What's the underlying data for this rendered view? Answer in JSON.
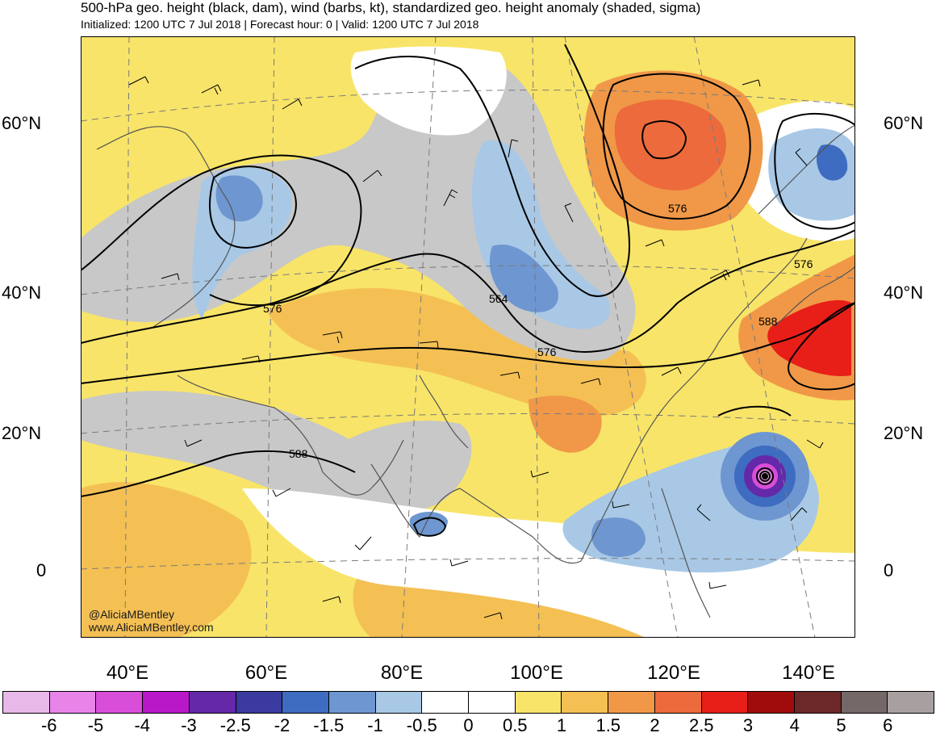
{
  "header": {
    "title": "500-hPa geo. height (black, dam), wind (barbs, kt), standardized geo. height anomaly (shaded, sigma)",
    "subtitle": "Initialized: 1200 UTC 7 Jul 2018 | Forecast hour: 0 | Valid: 1200 UTC 7 Jul 2018"
  },
  "map": {
    "lat_labels": [
      "60°N",
      "40°N",
      "20°N",
      "0"
    ],
    "lon_labels": [
      "40°E",
      "60°E",
      "80°E",
      "100°E",
      "120°E",
      "140°E"
    ],
    "contour_labels": [
      "576",
      "576",
      "576",
      "576",
      "564",
      "588",
      "588"
    ],
    "credit_lines": [
      "@AliciaMBentley",
      "www.AliciaMBentley.com"
    ],
    "colors": {
      "land_gray": "#c8c8c8",
      "ocean_white": "#ffffff",
      "contour": "#000000",
      "coast": "#555555"
    }
  },
  "colorbar": {
    "ticks": [
      "-6",
      "-5",
      "-4",
      "-3",
      "-2.5",
      "-2",
      "-1.5",
      "-1",
      "-0.5",
      "0",
      "0.5",
      "1",
      "1.5",
      "2",
      "2.5",
      "3",
      "4",
      "5",
      "6"
    ],
    "colors": [
      "#e8b8e8",
      "#e884e8",
      "#d84ed8",
      "#b818c8",
      "#6428a8",
      "#3a3aa0",
      "#3e6cc0",
      "#6e96d0",
      "#a8c8e6",
      "#ffffff",
      "#ffffff",
      "#f8e468",
      "#f4c054",
      "#f09848",
      "#ec6a3c",
      "#e81e18",
      "#a00c0c",
      "#6c2828",
      "#746868",
      "#a8a0a0"
    ]
  }
}
